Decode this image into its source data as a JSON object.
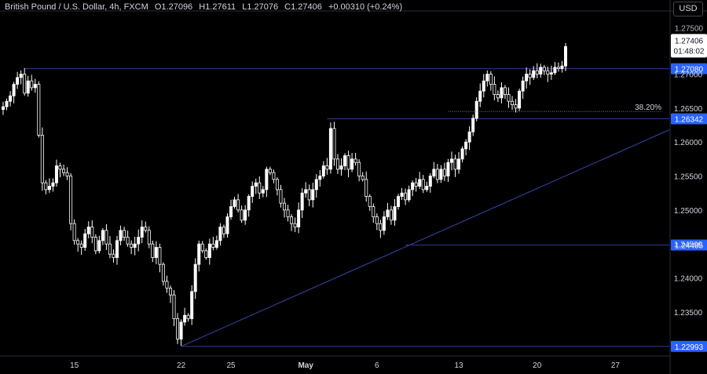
{
  "header": {
    "title": "British Pound / U.S. Dollar, 4h, FXCM",
    "open": "O1.27096",
    "high": "H1.27611",
    "low": "L1.27076",
    "close": "C1.27406",
    "change": "+0.00310 (+0.24%)"
  },
  "currency_button": "USD",
  "current_price": {
    "price": "1.27406",
    "countdown": "01:48:02"
  },
  "colors": {
    "background": "#000000",
    "candle": "#ffffff",
    "level_line": "#2f3b8f",
    "price_tag": "#2962ff",
    "text": "#d1d4dc"
  },
  "chart_data": {
    "type": "candlestick",
    "timeframe": "4h",
    "x_ticks": [
      "15",
      "22",
      "25",
      "May",
      "6",
      "13",
      "20",
      "27"
    ],
    "y_ticks": [
      1.27,
      1.265,
      1.26,
      1.255,
      1.25,
      1.245,
      1.24,
      1.235
    ],
    "y_tick_labels": [
      "1.27000",
      "1.26500",
      "1.26000",
      "1.25500",
      "1.25000",
      "1.24500",
      "1.24000",
      "1.23500"
    ],
    "ylim": [
      1.22875,
      1.2786
    ],
    "horizontal_levels": [
      {
        "label": "1.27080",
        "value": 1.2708
      },
      {
        "label": "1.26342",
        "value": 1.26342
      },
      {
        "label": "1.24485",
        "value": 1.24485
      },
      {
        "label": "1.22993",
        "value": 1.22993
      }
    ],
    "fib_annotation": {
      "label": "38.20%",
      "value": 1.2645
    },
    "trendline": {
      "from_price": 1.22993,
      "to_price": 1.2618,
      "note": "rising support"
    },
    "last_price": 1.27406,
    "closes": [
      1.2652,
      1.266,
      1.2668,
      1.2685,
      1.2695,
      1.27,
      1.2672,
      1.269,
      1.268,
      1.2685,
      1.261,
      1.254,
      1.253,
      1.2535,
      1.254,
      1.2565,
      1.256,
      1.2555,
      1.255,
      1.248,
      1.2455,
      1.245,
      1.2445,
      1.2465,
      1.2475,
      1.246,
      1.244,
      1.2455,
      1.247,
      1.245,
      1.2435,
      1.243,
      1.2455,
      1.247,
      1.246,
      1.245,
      1.2445,
      1.245,
      1.246,
      1.2475,
      1.247,
      1.245,
      1.243,
      1.2445,
      1.242,
      1.2395,
      1.2385,
      1.2375,
      1.234,
      1.231,
      1.2335,
      1.2345,
      1.234,
      1.238,
      1.242,
      1.245,
      1.244,
      1.243,
      1.245,
      1.2445,
      1.2455,
      1.2475,
      1.2465,
      1.249,
      1.2505,
      1.2515,
      1.25,
      1.2485,
      1.25,
      1.252,
      1.2535,
      1.254,
      1.2525,
      1.253,
      1.256,
      1.2555,
      1.2545,
      1.253,
      1.251,
      1.25,
      1.249,
      1.248,
      1.2475,
      1.25,
      1.2525,
      1.253,
      1.2515,
      1.253,
      1.2545,
      1.255,
      1.2565,
      1.256,
      1.262,
      1.2575,
      1.256,
      1.2565,
      1.258,
      1.256,
      1.2575,
      1.257,
      1.255,
      1.2545,
      1.252,
      1.2505,
      1.249,
      1.248,
      1.247,
      1.249,
      1.25,
      1.2485,
      1.2505,
      1.252,
      1.2525,
      1.2515,
      1.253,
      1.254,
      1.2535,
      1.2545,
      1.253,
      1.2535,
      1.255,
      1.256,
      1.2545,
      1.256,
      1.255,
      1.257,
      1.2575,
      1.256,
      1.2575,
      1.259,
      1.26,
      1.2615,
      1.2635,
      1.266,
      1.2675,
      1.269,
      1.27,
      1.2685,
      1.267,
      1.2665,
      1.268,
      1.267,
      1.266,
      1.2655,
      1.265,
      1.2675,
      1.269,
      1.27,
      1.2695,
      1.2705,
      1.27,
      1.271,
      1.2705,
      1.27,
      1.2702,
      1.271,
      1.2708,
      1.2712,
      1.27406
    ]
  }
}
